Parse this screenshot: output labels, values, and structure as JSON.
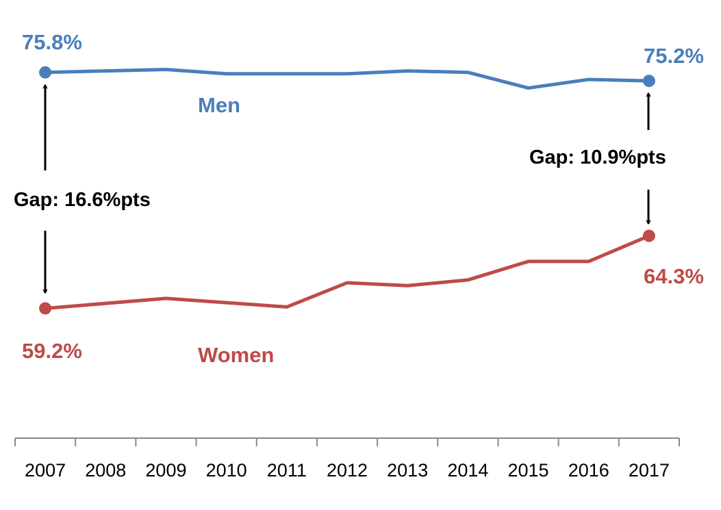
{
  "chart_data": {
    "type": "line",
    "title": "",
    "xlabel": "",
    "ylabel": "",
    "categories": [
      "2007",
      "2008",
      "2009",
      "2010",
      "2011",
      "2012",
      "2013",
      "2014",
      "2015",
      "2016",
      "2017"
    ],
    "ylim": [
      52,
      78
    ],
    "grid": false,
    "series": [
      {
        "name": "Men",
        "color": "#4a7ebb",
        "values": [
          75.8,
          75.9,
          76.0,
          75.7,
          75.7,
          75.7,
          75.9,
          75.8,
          74.7,
          75.3,
          75.2
        ],
        "marked_points": [
          0,
          10
        ]
      },
      {
        "name": "Women",
        "color": "#be4b48",
        "values": [
          59.2,
          null,
          59.9,
          59.6,
          59.3,
          61.0,
          60.8,
          61.2,
          62.5,
          62.5,
          64.3
        ],
        "marked_points": [
          0,
          10
        ]
      }
    ],
    "annotations": {
      "men_start": "75.8%",
      "men_end": "75.2%",
      "women_start": "59.2%",
      "women_end": "64.3%",
      "gap_start": "Gap: 16.6%pts",
      "gap_end": "Gap: 10.9%pts"
    }
  }
}
